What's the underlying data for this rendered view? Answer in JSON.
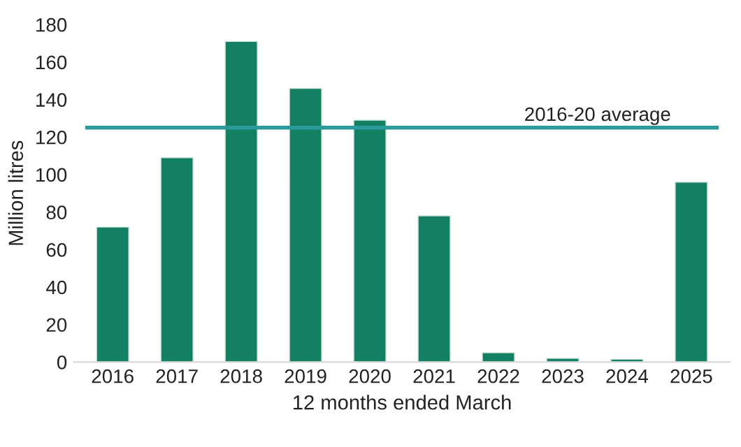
{
  "chart_data": {
    "type": "bar",
    "xlabel": "12 months ended March",
    "ylabel": "Million litres",
    "categories": [
      "2016",
      "2017",
      "2018",
      "2019",
      "2020",
      "2021",
      "2022",
      "2023",
      "2024",
      "2025"
    ],
    "values": [
      72,
      109,
      171,
      146,
      129,
      78,
      5,
      2,
      1.5,
      96
    ],
    "color": "#138063",
    "ylim": [
      0,
      180
    ],
    "yticks": [
      0,
      20,
      40,
      60,
      80,
      100,
      120,
      140,
      160,
      180
    ],
    "grid": false,
    "ref_lines": [
      {
        "axis": "y",
        "value": 125,
        "label": "2016-20 average",
        "color": "#2a9a9a"
      }
    ]
  }
}
